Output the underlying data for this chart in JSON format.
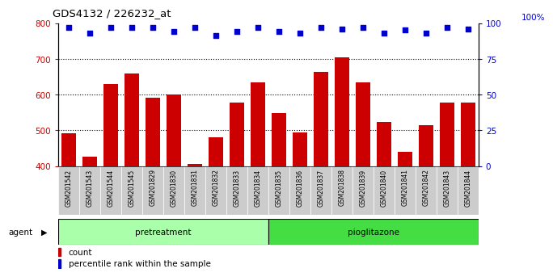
{
  "title": "GDS4132 / 226232_at",
  "categories": [
    "GSM201542",
    "GSM201543",
    "GSM201544",
    "GSM201545",
    "GSM201829",
    "GSM201830",
    "GSM201831",
    "GSM201832",
    "GSM201833",
    "GSM201834",
    "GSM201835",
    "GSM201836",
    "GSM201837",
    "GSM201838",
    "GSM201839",
    "GSM201840",
    "GSM201841",
    "GSM201842",
    "GSM201843",
    "GSM201844"
  ],
  "bar_values": [
    492,
    425,
    630,
    660,
    590,
    600,
    405,
    480,
    578,
    635,
    548,
    495,
    663,
    705,
    633,
    523,
    440,
    515,
    577,
    577
  ],
  "percentile_values": [
    97,
    93,
    97,
    97,
    97,
    94,
    97,
    91,
    94,
    97,
    94,
    93,
    97,
    96,
    97,
    93,
    95,
    93,
    97,
    96
  ],
  "bar_color": "#cc0000",
  "percentile_color": "#0000cc",
  "ylim_left": [
    400,
    800
  ],
  "ylim_right": [
    0,
    100
  ],
  "yticks_left": [
    400,
    500,
    600,
    700,
    800
  ],
  "yticks_right": [
    0,
    25,
    50,
    75,
    100
  ],
  "grid_values": [
    500,
    600,
    700
  ],
  "pretreatment_color": "#aaffaa",
  "pioglitazone_color": "#44dd44",
  "agent_label": "agent",
  "pretreatment_label": "pretreatment",
  "pioglitazone_label": "pioglitazone",
  "legend_count_label": "count",
  "legend_percentile_label": "percentile rank within the sample",
  "right_axis_label": "100%",
  "xticklabel_bg": "#cccccc"
}
